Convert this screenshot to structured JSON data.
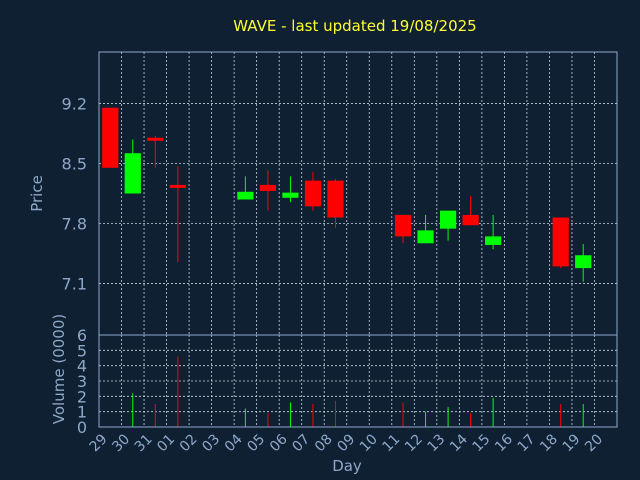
{
  "colors": {
    "background": "#0f2033",
    "title": "#ffff33",
    "axis_text": "#8fa8c8",
    "frame": "#8fa8c8",
    "grid": "#c8d4e0",
    "up": "#00ff00",
    "down": "#ff0000"
  },
  "chart_data": [
    {
      "type": "candlestick",
      "title": "WAVE - last updated 19/08/2025",
      "ylabel": "Price",
      "ylim": [
        6.5,
        9.8
      ],
      "yticks": [
        "9.2",
        "8.5",
        "7.8",
        "7.1"
      ],
      "ytick_values": [
        9.2,
        8.5,
        7.8,
        7.1
      ],
      "grid": true,
      "candles": [
        {
          "day": "29",
          "open": 9.15,
          "high": 9.15,
          "low": 8.45,
          "close": 8.45
        },
        {
          "day": "30",
          "open": 8.15,
          "high": 8.78,
          "low": 8.15,
          "close": 8.62
        },
        {
          "day": "31",
          "open": 8.8,
          "high": 8.82,
          "low": 8.45,
          "close": 8.77
        },
        {
          "day": "01",
          "open": 8.25,
          "high": 8.47,
          "low": 7.35,
          "close": 8.22
        },
        {
          "day": "04",
          "open": 8.08,
          "high": 8.35,
          "low": 8.08,
          "close": 8.17
        },
        {
          "day": "05",
          "open": 8.25,
          "high": 8.42,
          "low": 7.95,
          "close": 8.18
        },
        {
          "day": "06",
          "open": 8.1,
          "high": 8.35,
          "low": 8.05,
          "close": 8.16
        },
        {
          "day": "07",
          "open": 8.3,
          "high": 8.4,
          "low": 7.95,
          "close": 8.0
        },
        {
          "day": "08",
          "open": 8.3,
          "high": 8.32,
          "low": 7.75,
          "close": 7.87
        },
        {
          "day": "11",
          "open": 7.9,
          "high": 7.9,
          "low": 7.57,
          "close": 7.65
        },
        {
          "day": "12",
          "open": 7.57,
          "high": 7.9,
          "low": 7.57,
          "close": 7.72
        },
        {
          "day": "13",
          "open": 7.74,
          "high": 7.95,
          "low": 7.6,
          "close": 7.95
        },
        {
          "day": "14",
          "open": 7.9,
          "high": 8.12,
          "low": 7.78,
          "close": 7.78
        },
        {
          "day": "15",
          "open": 7.55,
          "high": 7.9,
          "low": 7.5,
          "close": 7.65
        },
        {
          "day": "18",
          "open": 7.87,
          "high": 7.87,
          "low": 7.28,
          "close": 7.3
        },
        {
          "day": "19",
          "open": 7.28,
          "high": 7.56,
          "low": 7.12,
          "close": 7.43
        }
      ]
    },
    {
      "type": "bar",
      "ylabel": "Volume (0000)",
      "xlabel": "Day",
      "ylim": [
        0,
        6
      ],
      "yticks": [
        "0",
        "1",
        "2",
        "3",
        "4",
        "5",
        "6"
      ],
      "ytick_values": [
        0,
        1,
        2,
        3,
        4,
        5,
        6
      ],
      "grid": true,
      "categories": [
        "29",
        "30",
        "31",
        "01",
        "02",
        "03",
        "04",
        "05",
        "06",
        "07",
        "08",
        "09",
        "10",
        "11",
        "12",
        "13",
        "14",
        "15",
        "16",
        "17",
        "18",
        "19",
        "20"
      ],
      "volumes": [
        {
          "day": "30",
          "value": 2.2,
          "direction": "up"
        },
        {
          "day": "31",
          "value": 1.5,
          "direction": "down"
        },
        {
          "day": "01",
          "value": 4.6,
          "direction": "down"
        },
        {
          "day": "04",
          "value": 1.2,
          "direction": "up"
        },
        {
          "day": "05",
          "value": 0.9,
          "direction": "down"
        },
        {
          "day": "06",
          "value": 1.6,
          "direction": "up"
        },
        {
          "day": "07",
          "value": 1.5,
          "direction": "down"
        },
        {
          "day": "08",
          "value": 1.7,
          "direction": "down"
        },
        {
          "day": "11",
          "value": 1.6,
          "direction": "down"
        },
        {
          "day": "12",
          "value": 1.0,
          "direction": "up"
        },
        {
          "day": "13",
          "value": 1.3,
          "direction": "up"
        },
        {
          "day": "14",
          "value": 0.9,
          "direction": "down"
        },
        {
          "day": "15",
          "value": 1.9,
          "direction": "up"
        },
        {
          "day": "18",
          "value": 1.5,
          "direction": "down"
        },
        {
          "day": "19",
          "value": 1.5,
          "direction": "up"
        }
      ]
    }
  ]
}
